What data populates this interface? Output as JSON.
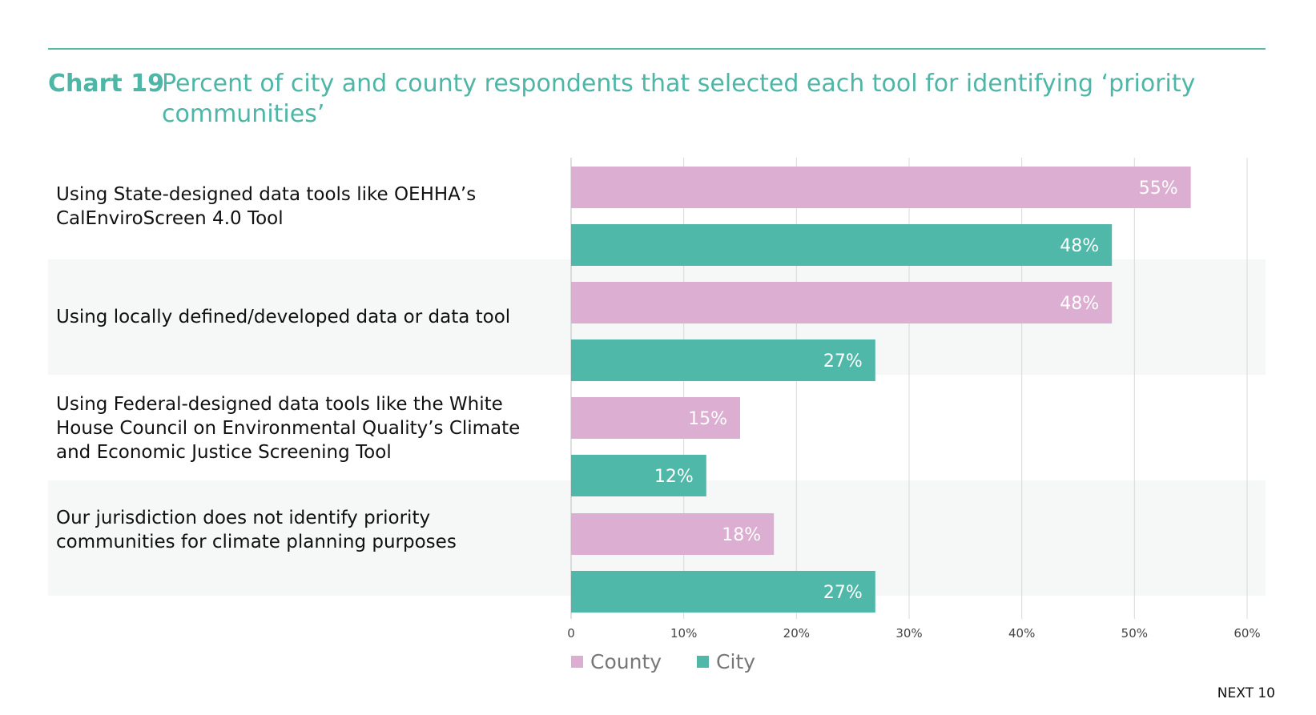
{
  "title": {
    "chart_number": "Chart 19",
    "text": "Percent of city and county respondents that selected each tool for identifying ‘priority communities’"
  },
  "footer": {
    "brand": "NEXT 10"
  },
  "colors": {
    "county": "#dcaed1",
    "city": "#4fb8a9",
    "title": "#4db6a6"
  },
  "chart_data": {
    "type": "bar",
    "orientation": "horizontal",
    "categories": [
      "Using State-designed data tools like OEHHA’s CalEnviroScreen 4.0 Tool",
      "Using locally defined/developed data or data tool",
      "Using Federal-designed data tools like the White House Council on Environmental Quality’s Climate and Economic Justice Screening Tool",
      "Our jurisdiction does not identify priority communities for climate planning purposes"
    ],
    "series": [
      {
        "name": "County",
        "values": [
          55,
          48,
          15,
          18
        ],
        "labels": [
          "55%",
          "48%",
          "15%",
          "18%"
        ]
      },
      {
        "name": "City",
        "values": [
          48,
          27,
          12,
          27
        ],
        "labels": [
          "48%",
          "27%",
          "12%",
          "27%"
        ]
      }
    ],
    "xlim": [
      0,
      60
    ],
    "x_ticks": [
      "0",
      "10%",
      "20%",
      "30%",
      "40%",
      "50%",
      "60%"
    ],
    "grid": true,
    "legend_position": "bottom"
  }
}
